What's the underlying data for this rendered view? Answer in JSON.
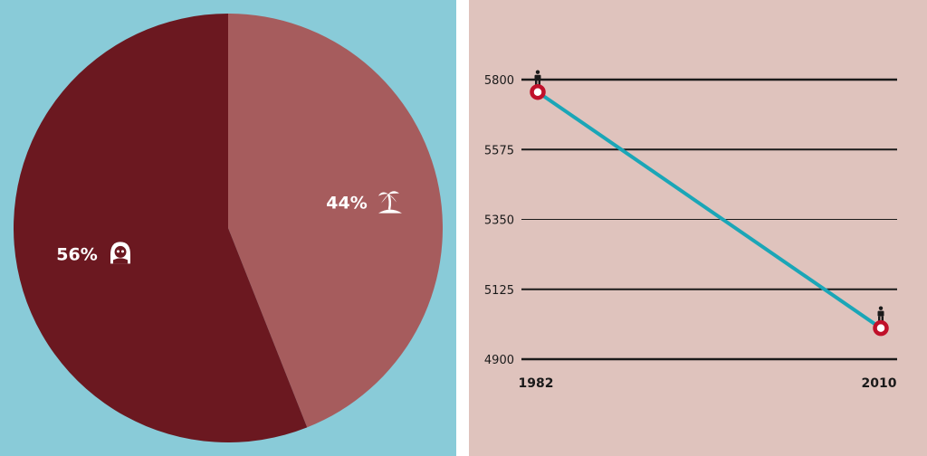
{
  "colors": {
    "left_background": "#89cbd8",
    "right_background": "#dfc3bd",
    "pie_large": "#6b1820",
    "pie_small": "#a65c5d",
    "line": "#1aa6b7",
    "marker": "#c0102a",
    "gridline": "#1a1a1a",
    "icon": "#1a1a1a"
  },
  "chart_data": [
    {
      "type": "pie",
      "slices": [
        {
          "label": "44%",
          "value": 44,
          "icon": "palm-island-icon",
          "color": "#a65c5d"
        },
        {
          "label": "56%",
          "value": 56,
          "icon": "hooded-person-icon",
          "color": "#6b1820"
        }
      ],
      "start_angle_deg": 0
    },
    {
      "type": "line",
      "x": [
        "1982",
        "2010"
      ],
      "series": [
        {
          "values": [
            5760,
            5000
          ],
          "color": "#1aa6b7",
          "marker_icon": "person-icon"
        }
      ],
      "yticks": [
        "5800",
        "5575",
        "5350",
        "5125",
        "4900"
      ],
      "ylim": [
        4900,
        5800
      ],
      "grid": true
    }
  ]
}
